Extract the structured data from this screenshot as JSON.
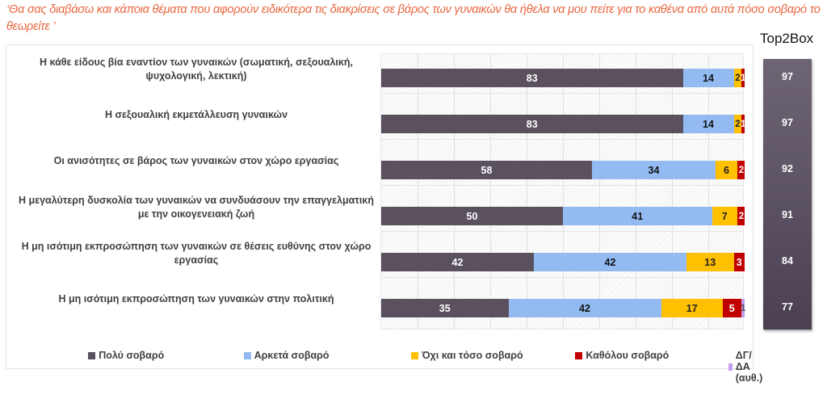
{
  "question": "‘Θα σας διαβάσω και κάποια θέματα που αφορούν ειδικότερα τις διακρίσεις σε βάρος των γυναικών θα ήθελα να μου πείτε για το καθένα από αυτά πόσο σοβαρό το θεωρείτε ’",
  "top2box_title": "Top2Box",
  "chart_data": {
    "type": "bar",
    "orientation": "horizontal",
    "stacked": true,
    "title": "",
    "xlabel": "",
    "ylabel": "",
    "xlim": [
      0,
      100
    ],
    "grid": true,
    "legend_position": "bottom",
    "categories": [
      "Η κάθε είδους βία εναντίον των γυναικών (σωματική, σεξουαλική, ψυχολογική, λεκτική)",
      "Η σεξουαλική εκμετάλλευση γυναικών",
      "Οι ανισότητες σε βάρος των γυναικών στον χώρο εργασίας",
      "Η μεγαλύτερη δυσκολία των γυναικών να συνδυάσουν την επαγγελματική με την οικογενειακή ζωή",
      "Η μη ισότιμη εκπροσώπηση των γυναικών σε θέσεις ευθύνης στον χώρο εργασίας",
      "Η  μη ισότιμη εκπροσώπηση των γυναικών στην πολιτική"
    ],
    "series": [
      {
        "name": "Πολύ σοβαρό",
        "color": "#5a505e",
        "label_color": "#ffffff",
        "values": [
          83,
          83,
          58,
          50,
          42,
          35
        ]
      },
      {
        "name": "Αρκετά σοβαρό",
        "color": "#93bbf1",
        "label_color": "#111111",
        "values": [
          14,
          14,
          34,
          41,
          42,
          42
        ]
      },
      {
        "name": "Όχι και τόσο σοβαρό",
        "color": "#ffc000",
        "label_color": "#222222",
        "values": [
          2,
          2,
          6,
          7,
          13,
          17
        ]
      },
      {
        "name": "Καθόλου σοβαρό",
        "color": "#c00000",
        "label_color": "#ffffff",
        "values": [
          1,
          1,
          2,
          2,
          3,
          5
        ]
      },
      {
        "name": "ΔΓ/ΔΑ (αυθ.)",
        "color": "#c49ef0",
        "label_color": "#555555",
        "values": [
          0,
          0,
          0,
          0,
          0,
          1
        ]
      }
    ],
    "top2box": [
      97,
      97,
      92,
      91,
      84,
      77
    ]
  }
}
